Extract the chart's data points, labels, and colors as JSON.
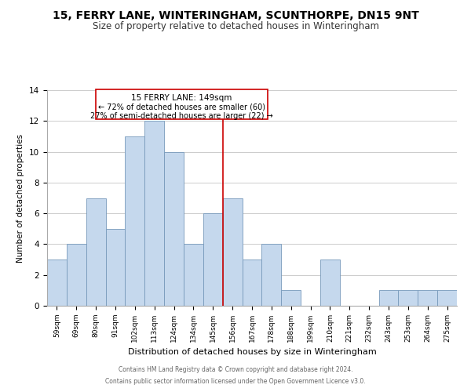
{
  "title": "15, FERRY LANE, WINTERINGHAM, SCUNTHORPE, DN15 9NT",
  "subtitle": "Size of property relative to detached houses in Winteringham",
  "xlabel": "Distribution of detached houses by size in Winteringham",
  "ylabel": "Number of detached properties",
  "bar_labels": [
    "59sqm",
    "69sqm",
    "80sqm",
    "91sqm",
    "102sqm",
    "113sqm",
    "124sqm",
    "134sqm",
    "145sqm",
    "156sqm",
    "167sqm",
    "178sqm",
    "188sqm",
    "199sqm",
    "210sqm",
    "221sqm",
    "232sqm",
    "243sqm",
    "253sqm",
    "264sqm",
    "275sqm"
  ],
  "bar_heights": [
    3,
    4,
    7,
    5,
    11,
    12,
    10,
    4,
    6,
    7,
    3,
    4,
    1,
    0,
    3,
    0,
    0,
    1,
    1,
    1,
    1
  ],
  "bar_color": "#c5d8ed",
  "bar_edge_color": "#7799bb",
  "vline_color": "#cc0000",
  "annotation_title": "15 FERRY LANE: 149sqm",
  "annotation_line1": "← 72% of detached houses are smaller (60)",
  "annotation_line2": "27% of semi-detached houses are larger (22) →",
  "annotation_box_color": "#ffffff",
  "annotation_box_edge": "#cc0000",
  "ylim": [
    0,
    14
  ],
  "yticks": [
    0,
    2,
    4,
    6,
    8,
    10,
    12,
    14
  ],
  "footer1": "Contains HM Land Registry data © Crown copyright and database right 2024.",
  "footer2": "Contains public sector information licensed under the Open Government Licence v3.0.",
  "title_fontsize": 10,
  "subtitle_fontsize": 8.5,
  "background_color": "#ffffff",
  "grid_color": "#cccccc"
}
